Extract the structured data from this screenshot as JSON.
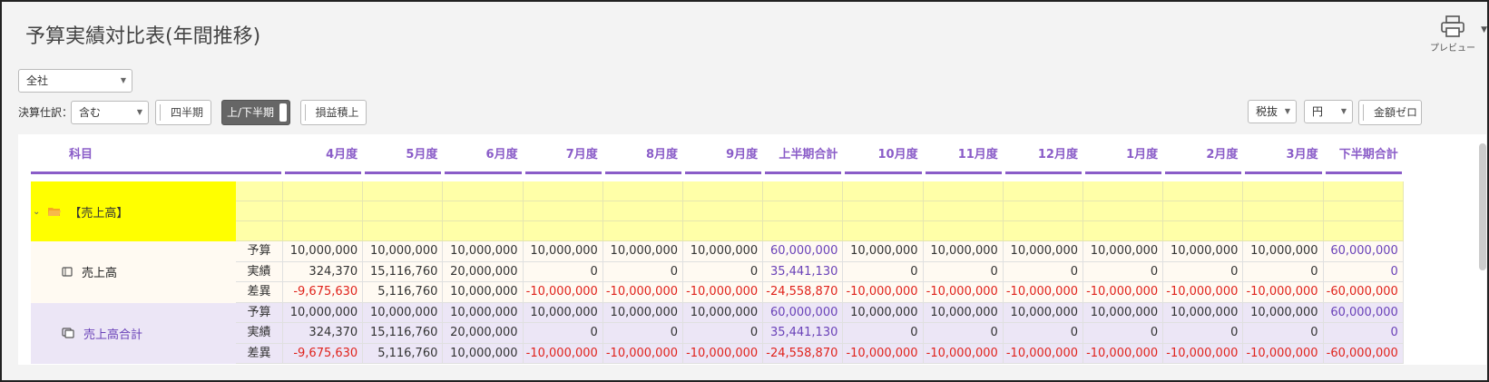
{
  "page": {
    "title": "予算実績対比表(年間推移)"
  },
  "toolbar": {
    "preview_label": "プレビュー",
    "company_select": "全社",
    "settle_label": "決算仕訳：",
    "settle_select": "含む",
    "quarter_btn": "四半期",
    "half_btn": "上/下半期",
    "profit_btn": "損益積上",
    "tax_select": "税抜",
    "unit_select": "円",
    "zero_btn": "金額ゼロ"
  },
  "table": {
    "subject_header": "科目",
    "months": [
      "4月度",
      "5月度",
      "6月度",
      "7月度",
      "8月度",
      "9月度",
      "上半期合計",
      "10月度",
      "11月度",
      "12月度",
      "1月度",
      "2月度",
      "3月度",
      "下半期合計"
    ],
    "group": {
      "name": "【売上高】"
    },
    "rows": [
      {
        "name": "売上高",
        "lines": [
          {
            "type": "予算",
            "values": [
              "10,000,000",
              "10,000,000",
              "10,000,000",
              "10,000,000",
              "10,000,000",
              "10,000,000",
              "60,000,000",
              "10,000,000",
              "10,000,000",
              "10,000,000",
              "10,000,000",
              "10,000,000",
              "10,000,000",
              "60,000,000"
            ]
          },
          {
            "type": "実績",
            "values": [
              "324,370",
              "15,116,760",
              "20,000,000",
              "0",
              "0",
              "0",
              "35,441,130",
              "0",
              "0",
              "0",
              "0",
              "0",
              "0",
              "0"
            ]
          },
          {
            "type": "差異",
            "values": [
              "-9,675,630",
              "5,116,760",
              "10,000,000",
              "-10,000,000",
              "-10,000,000",
              "-10,000,000",
              "-24,558,870",
              "-10,000,000",
              "-10,000,000",
              "-10,000,000",
              "-10,000,000",
              "-10,000,000",
              "-10,000,000",
              "-60,000,000"
            ]
          }
        ]
      },
      {
        "name": "売上高合計",
        "lines": [
          {
            "type": "予算",
            "values": [
              "10,000,000",
              "10,000,000",
              "10,000,000",
              "10,000,000",
              "10,000,000",
              "10,000,000",
              "60,000,000",
              "10,000,000",
              "10,000,000",
              "10,000,000",
              "10,000,000",
              "10,000,000",
              "10,000,000",
              "60,000,000"
            ]
          },
          {
            "type": "実績",
            "values": [
              "324,370",
              "15,116,760",
              "20,000,000",
              "0",
              "0",
              "0",
              "35,441,130",
              "0",
              "0",
              "0",
              "0",
              "0",
              "0",
              "0"
            ]
          },
          {
            "type": "差異",
            "values": [
              "-9,675,630",
              "5,116,760",
              "10,000,000",
              "-10,000,000",
              "-10,000,000",
              "-10,000,000",
              "-24,558,870",
              "-10,000,000",
              "-10,000,000",
              "-10,000,000",
              "-10,000,000",
              "-10,000,000",
              "-10,000,000",
              "-60,000,000"
            ]
          }
        ]
      }
    ]
  },
  "colors": {
    "accent": "#8a5cc8",
    "group_bg": "#ffff00",
    "group_cells_bg": "#ffffa8",
    "row1_bg": "#fffaf2",
    "row2_bg": "#ece6f6",
    "negative": "#e0231c",
    "subtotal": "#6a42b8"
  },
  "icons": {
    "preview": "printer-icon",
    "group_toggle": "chevron-down-icon",
    "group_folder": "folder-open-icon",
    "row_item": "tag-icon",
    "row_total": "copy-icon"
  }
}
